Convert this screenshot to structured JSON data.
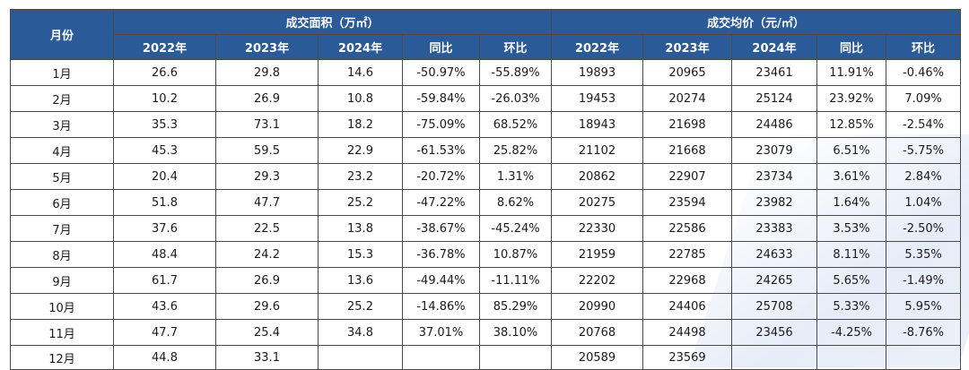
{
  "headers": {
    "month": "月份",
    "area_group": "成交面积（万㎡）",
    "price_group": "成交均价（元/㎡）",
    "area_cols": [
      "2022年",
      "2023年",
      "2024年",
      "同比",
      "环比"
    ],
    "price_cols": [
      "2022年",
      "2023年",
      "2024年",
      "同比",
      "环比"
    ]
  },
  "rows": [
    {
      "month": "1月",
      "area": [
        "26.6",
        "29.8",
        "14.6",
        "-50.97%",
        "-55.89%"
      ],
      "price": [
        "19893",
        "20965",
        "23461",
        "11.91%",
        "-0.46%"
      ]
    },
    {
      "month": "2月",
      "area": [
        "10.2",
        "26.9",
        "10.8",
        "-59.84%",
        "-26.03%"
      ],
      "price": [
        "19453",
        "20274",
        "25124",
        "23.92%",
        "7.09%"
      ]
    },
    {
      "month": "3月",
      "area": [
        "35.3",
        "73.1",
        "18.2",
        "-75.09%",
        "68.52%"
      ],
      "price": [
        "18943",
        "21698",
        "24486",
        "12.85%",
        "-2.54%"
      ]
    },
    {
      "month": "4月",
      "area": [
        "45.3",
        "59.5",
        "22.9",
        "-61.53%",
        "25.82%"
      ],
      "price": [
        "21102",
        "21668",
        "23079",
        "6.51%",
        "-5.75%"
      ]
    },
    {
      "month": "5月",
      "area": [
        "20.4",
        "29.3",
        "23.2",
        "-20.72%",
        "1.31%"
      ],
      "price": [
        "20862",
        "22907",
        "23734",
        "3.61%",
        "2.84%"
      ]
    },
    {
      "month": "6月",
      "area": [
        "51.8",
        "47.7",
        "25.2",
        "-47.22%",
        "8.62%"
      ],
      "price": [
        "20275",
        "23594",
        "23982",
        "1.64%",
        "1.04%"
      ]
    },
    {
      "month": "7月",
      "area": [
        "37.6",
        "22.5",
        "13.8",
        "-38.67%",
        "-45.24%"
      ],
      "price": [
        "22330",
        "22586",
        "23383",
        "3.53%",
        "-2.50%"
      ]
    },
    {
      "month": "8月",
      "area": [
        "48.4",
        "24.2",
        "15.3",
        "-36.78%",
        "10.87%"
      ],
      "price": [
        "21959",
        "22785",
        "24633",
        "8.11%",
        "5.35%"
      ]
    },
    {
      "month": "9月",
      "area": [
        "61.7",
        "26.9",
        "13.6",
        "-49.44%",
        "-11.11%"
      ],
      "price": [
        "22202",
        "22968",
        "24265",
        "5.65%",
        "-1.49%"
      ]
    },
    {
      "month": "10月",
      "area": [
        "43.6",
        "29.6",
        "25.2",
        "-14.86%",
        "85.29%"
      ],
      "price": [
        "20990",
        "24406",
        "25708",
        "5.33%",
        "5.95%"
      ]
    },
    {
      "month": "11月",
      "area": [
        "47.7",
        "25.4",
        "34.8",
        "37.01%",
        "38.10%"
      ],
      "price": [
        "20768",
        "24498",
        "23456",
        "-4.25%",
        "-8.76%"
      ]
    },
    {
      "month": "12月",
      "area": [
        "44.8",
        "33.1",
        "",
        "",
        ""
      ],
      "price": [
        "20589",
        "23569",
        "",
        "",
        ""
      ]
    }
  ]
}
